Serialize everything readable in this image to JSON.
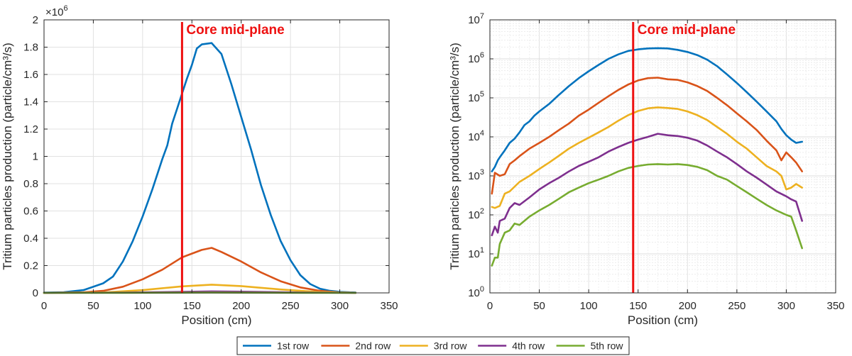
{
  "chart_data": [
    {
      "type": "line",
      "xlabel": "Position (cm)",
      "ylabel": "Tritium particles production (particle/cm³/s)",
      "xlim": [
        0,
        350
      ],
      "ylim": [
        0,
        2000000
      ],
      "yscale": "linear",
      "y_multiplier_label": "×10",
      "y_multiplier_exp": "6",
      "grid": true,
      "xticks": [
        0,
        50,
        100,
        150,
        200,
        250,
        300,
        350
      ],
      "yticks": [
        0,
        200000,
        400000,
        600000,
        800000,
        1000000,
        1200000,
        1400000,
        1600000,
        1800000,
        2000000
      ],
      "ytick_labels": [
        "0",
        "0.2",
        "0.4",
        "0.6",
        "0.8",
        "1",
        "1.2",
        "1.4",
        "1.6",
        "1.8",
        "2"
      ],
      "annotation": {
        "text": "Core mid-plane",
        "x": 140,
        "color": "#ee1111"
      },
      "series": [
        {
          "name": "1st row",
          "color": "#0072bd",
          "x": [
            0,
            20,
            40,
            60,
            70,
            80,
            90,
            100,
            110,
            120,
            125,
            130,
            135,
            140,
            145,
            150,
            155,
            160,
            170,
            180,
            190,
            200,
            210,
            220,
            230,
            240,
            250,
            260,
            270,
            280,
            290,
            300,
            310,
            316
          ],
          "y": [
            2000,
            5000,
            20000,
            70000,
            120000,
            230000,
            380000,
            560000,
            760000,
            980000,
            1080000,
            1240000,
            1350000,
            1460000,
            1570000,
            1670000,
            1790000,
            1820000,
            1830000,
            1750000,
            1530000,
            1290000,
            1050000,
            790000,
            570000,
            380000,
            240000,
            130000,
            65000,
            30000,
            15000,
            8000,
            4000,
            3000
          ]
        },
        {
          "name": "2nd row",
          "color": "#d95319",
          "x": [
            0,
            40,
            60,
            80,
            100,
            120,
            140,
            160,
            170,
            180,
            200,
            220,
            240,
            260,
            280,
            300,
            316
          ],
          "y": [
            500,
            4000,
            15000,
            45000,
            100000,
            170000,
            260000,
            315000,
            330000,
            300000,
            230000,
            150000,
            85000,
            40000,
            15000,
            3000,
            1000
          ]
        },
        {
          "name": "3rd row",
          "color": "#edb120",
          "x": [
            0,
            60,
            100,
            140,
            170,
            200,
            240,
            280,
            316
          ],
          "y": [
            200,
            3000,
            20000,
            48000,
            60000,
            50000,
            25000,
            6000,
            500
          ]
        },
        {
          "name": "4th row",
          "color": "#7e2f8e",
          "x": [
            0,
            80,
            140,
            170,
            200,
            260,
            316
          ],
          "y": [
            100,
            2000,
            8000,
            11000,
            9000,
            3000,
            100
          ]
        },
        {
          "name": "5th row",
          "color": "#77ac30",
          "x": [
            0,
            80,
            140,
            170,
            200,
            260,
            316
          ],
          "y": [
            50,
            500,
            1500,
            2000,
            1800,
            600,
            20
          ]
        }
      ]
    },
    {
      "type": "line",
      "xlabel": "Position (cm)",
      "ylabel": "Tritium particles production (particle/cm³/s)",
      "xlim": [
        0,
        350
      ],
      "ylim": [
        1,
        10000000
      ],
      "yscale": "log",
      "grid": true,
      "xticks": [
        0,
        50,
        100,
        150,
        200,
        250,
        300,
        350
      ],
      "ytick_exponents": [
        0,
        1,
        2,
        3,
        4,
        5,
        6,
        7
      ],
      "annotation": {
        "text": "Core mid-plane",
        "x": 145,
        "color": "#ee1111"
      },
      "series": [
        {
          "name": "1st row",
          "color": "#0072bd",
          "x": [
            2,
            5,
            8,
            10,
            15,
            20,
            25,
            30,
            35,
            40,
            45,
            50,
            60,
            70,
            80,
            90,
            100,
            110,
            120,
            130,
            140,
            150,
            160,
            170,
            180,
            190,
            200,
            210,
            220,
            230,
            240,
            250,
            260,
            270,
            280,
            290,
            295,
            300,
            305,
            310,
            316
          ],
          "y": [
            1300,
            1700,
            2500,
            3000,
            4500,
            7000,
            9000,
            13000,
            20000,
            25000,
            35000,
            45000,
            70000,
            120000,
            200000,
            320000,
            480000,
            700000,
            1000000,
            1300000,
            1600000,
            1750000,
            1850000,
            1880000,
            1850000,
            1700000,
            1500000,
            1250000,
            950000,
            650000,
            400000,
            240000,
            140000,
            80000,
            45000,
            25000,
            16000,
            11000,
            8500,
            7000,
            7500
          ]
        },
        {
          "name": "2nd row",
          "color": "#d95319",
          "x": [
            2,
            5,
            10,
            15,
            20,
            25,
            30,
            40,
            50,
            60,
            70,
            80,
            90,
            100,
            110,
            120,
            130,
            140,
            150,
            160,
            170,
            180,
            190,
            200,
            210,
            220,
            230,
            240,
            250,
            260,
            270,
            280,
            290,
            295,
            300,
            305,
            310,
            316
          ],
          "y": [
            350,
            1200,
            1000,
            1100,
            2000,
            2500,
            3200,
            5000,
            7000,
            10000,
            15000,
            22000,
            35000,
            50000,
            75000,
            110000,
            160000,
            220000,
            280000,
            320000,
            330000,
            300000,
            290000,
            250000,
            200000,
            150000,
            100000,
            65000,
            40000,
            25000,
            15000,
            8000,
            4500,
            2500,
            4000,
            3000,
            2200,
            1300
          ]
        },
        {
          "name": "3rd row",
          "color": "#edb120",
          "x": [
            2,
            5,
            10,
            15,
            20,
            30,
            40,
            50,
            60,
            70,
            80,
            90,
            100,
            110,
            120,
            130,
            140,
            150,
            160,
            170,
            180,
            190,
            200,
            210,
            220,
            230,
            240,
            250,
            260,
            270,
            280,
            290,
            295,
            300,
            305,
            310,
            316
          ],
          "y": [
            160,
            150,
            170,
            350,
            400,
            700,
            1000,
            1500,
            2200,
            3300,
            5000,
            7000,
            9500,
            13000,
            18000,
            26000,
            36000,
            46000,
            54000,
            57000,
            55000,
            52000,
            45000,
            36000,
            27000,
            18000,
            12000,
            7500,
            5000,
            3000,
            1800,
            1300,
            1000,
            450,
            500,
            620,
            500
          ]
        },
        {
          "name": "4th row",
          "color": "#7e2f8e",
          "x": [
            2,
            5,
            8,
            10,
            15,
            20,
            25,
            30,
            40,
            50,
            60,
            70,
            80,
            90,
            100,
            110,
            120,
            130,
            140,
            150,
            160,
            170,
            180,
            190,
            200,
            210,
            220,
            230,
            240,
            250,
            260,
            270,
            280,
            290,
            300,
            305,
            310,
            316
          ],
          "y": [
            30,
            50,
            35,
            70,
            80,
            150,
            200,
            180,
            280,
            450,
            650,
            900,
            1300,
            1800,
            2300,
            3000,
            4200,
            5500,
            7000,
            8500,
            10000,
            12000,
            11000,
            10500,
            9500,
            8000,
            6000,
            4200,
            3000,
            2000,
            1300,
            900,
            600,
            400,
            300,
            250,
            220,
            70
          ]
        },
        {
          "name": "5th row",
          "color": "#77ac30",
          "x": [
            2,
            5,
            8,
            10,
            15,
            20,
            25,
            30,
            40,
            50,
            60,
            70,
            80,
            90,
            100,
            110,
            120,
            130,
            140,
            150,
            160,
            170,
            180,
            190,
            200,
            210,
            220,
            230,
            240,
            250,
            260,
            270,
            280,
            290,
            300,
            305,
            310,
            316
          ],
          "y": [
            5,
            8,
            8,
            18,
            35,
            40,
            60,
            55,
            90,
            130,
            180,
            260,
            380,
            500,
            650,
            800,
            1000,
            1300,
            1600,
            1800,
            1950,
            2000,
            1950,
            2000,
            1900,
            1700,
            1400,
            1000,
            800,
            550,
            380,
            260,
            180,
            130,
            100,
            90,
            40,
            14
          ]
        }
      ]
    }
  ]
}
